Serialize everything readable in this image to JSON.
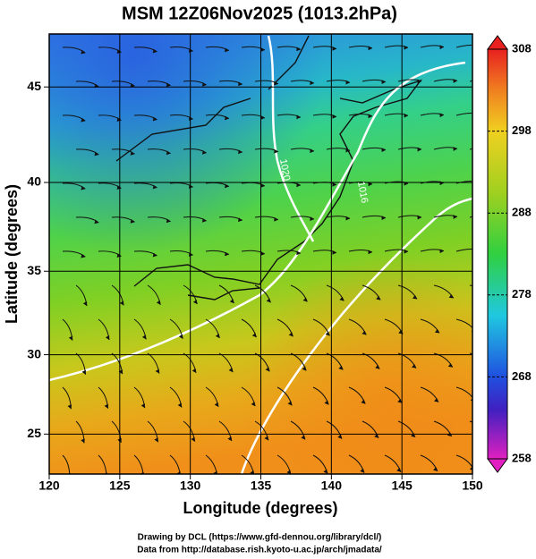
{
  "chart_data": {
    "type": "map",
    "title": "MSM 12Z06Nov2025 (1013.2hPa)",
    "x_label": "Longitude (degrees)",
    "y_label": "Latitude  (degrees)",
    "xlim": [
      120,
      150
    ],
    "ylim": [
      22.4,
      47.6
    ],
    "xticks": [
      120,
      125,
      130,
      135,
      140,
      145,
      150
    ],
    "yticks": [
      25,
      30,
      35,
      40,
      45
    ],
    "colorbar_lim": [
      258,
      308
    ],
    "colorbar_ticks": [
      258,
      268,
      278,
      288,
      298,
      308
    ],
    "contour_labels": [
      1020,
      1016
    ],
    "credits": [
      "Drawing by DCL (https://www.gfd-dennou.org/library/dcl/)",
      "Data from http://database.rish.kyoto-u.ac.jp/arch/jmadata/"
    ]
  }
}
